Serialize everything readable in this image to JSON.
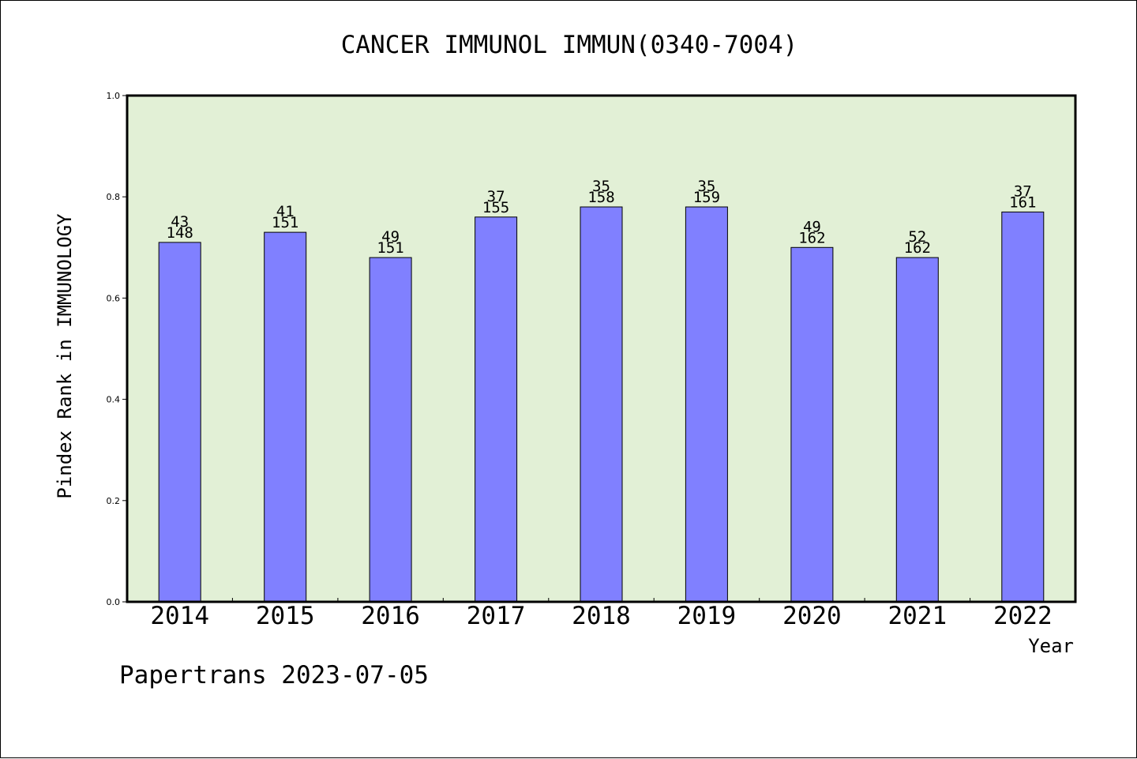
{
  "chart_data": {
    "type": "bar",
    "title": "CANCER IMMUNOL IMMUN(0340-7004)",
    "ylabel": "Pindex Rank in IMMUNOLOGY",
    "xlabel": "Year",
    "ylim": [
      0.0,
      1.0
    ],
    "yticks": [
      "0.0",
      "0.2",
      "0.4",
      "0.6",
      "0.8",
      "1.0"
    ],
    "categories": [
      "2014",
      "2015",
      "2016",
      "2017",
      "2018",
      "2019",
      "2020",
      "2021",
      "2022"
    ],
    "values": [
      0.71,
      0.73,
      0.68,
      0.76,
      0.78,
      0.78,
      0.7,
      0.68,
      0.77
    ],
    "rank_labels": [
      "43",
      "41",
      "49",
      "37",
      "35",
      "35",
      "49",
      "52",
      "37"
    ],
    "total_labels": [
      "148",
      "151",
      "151",
      "155",
      "158",
      "159",
      "162",
      "162",
      "161"
    ],
    "grid": false,
    "colors": {
      "bar": "#8080ff",
      "plot_background": "#e2f0d6",
      "axis": "#000000"
    }
  },
  "footer": "Papertrans 2023-07-05"
}
